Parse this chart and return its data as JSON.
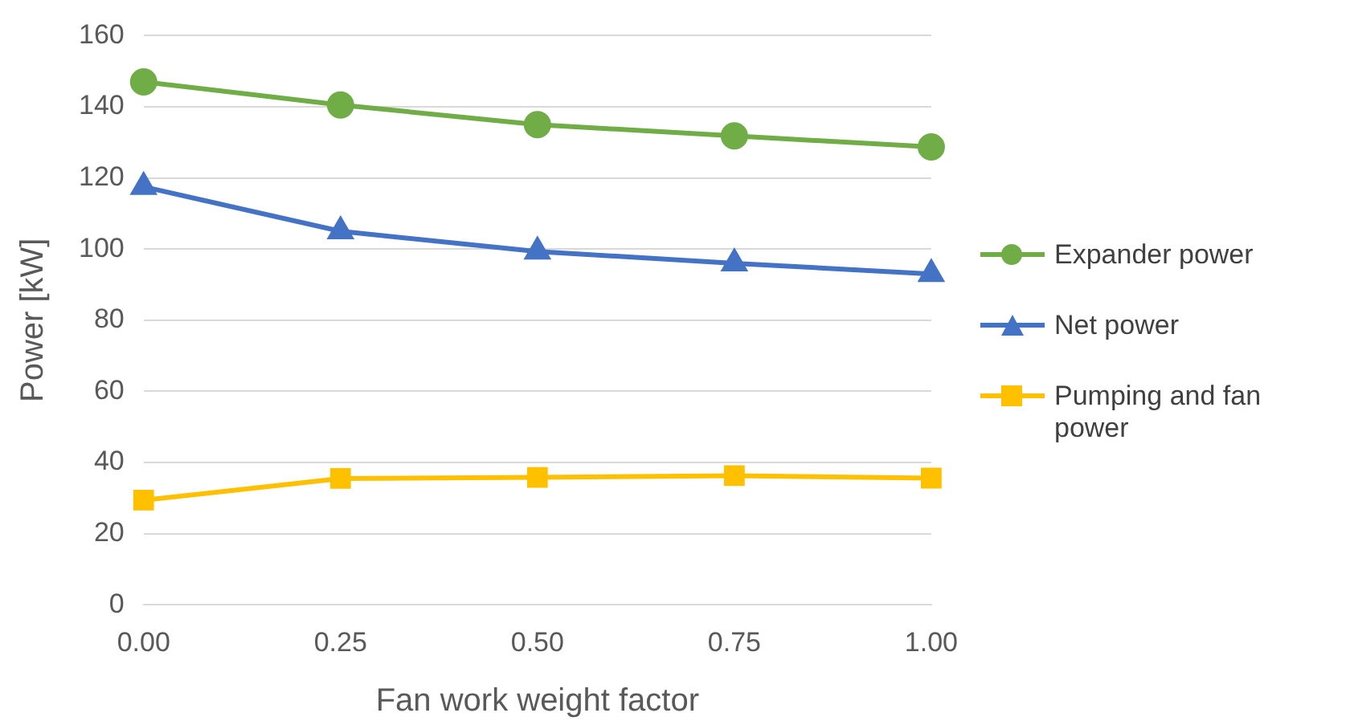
{
  "chart_data": {
    "type": "line",
    "xlabel": "Fan work weight factor",
    "ylabel": "Power [kW]",
    "categories": [
      "0.00",
      "0.25",
      "0.50",
      "0.75",
      "1.00"
    ],
    "series": [
      {
        "name": "Expander power",
        "color": "#70ad47",
        "marker": "circle",
        "values": [
          147,
          140.5,
          135,
          131.8,
          128.7
        ]
      },
      {
        "name": "Net power",
        "color": "#4472c4",
        "marker": "triangle",
        "values": [
          117.5,
          105,
          99.3,
          96,
          93
        ]
      },
      {
        "name": "Pumping and fan power",
        "color": "#ffc000",
        "marker": "square",
        "values": [
          29.4,
          35.5,
          35.8,
          36.3,
          35.6
        ]
      }
    ],
    "ylim": [
      0,
      160
    ],
    "yticks": [
      0,
      20,
      40,
      60,
      80,
      100,
      120,
      140,
      160
    ],
    "grid": "y",
    "legend": "right",
    "line_style": "solid"
  }
}
